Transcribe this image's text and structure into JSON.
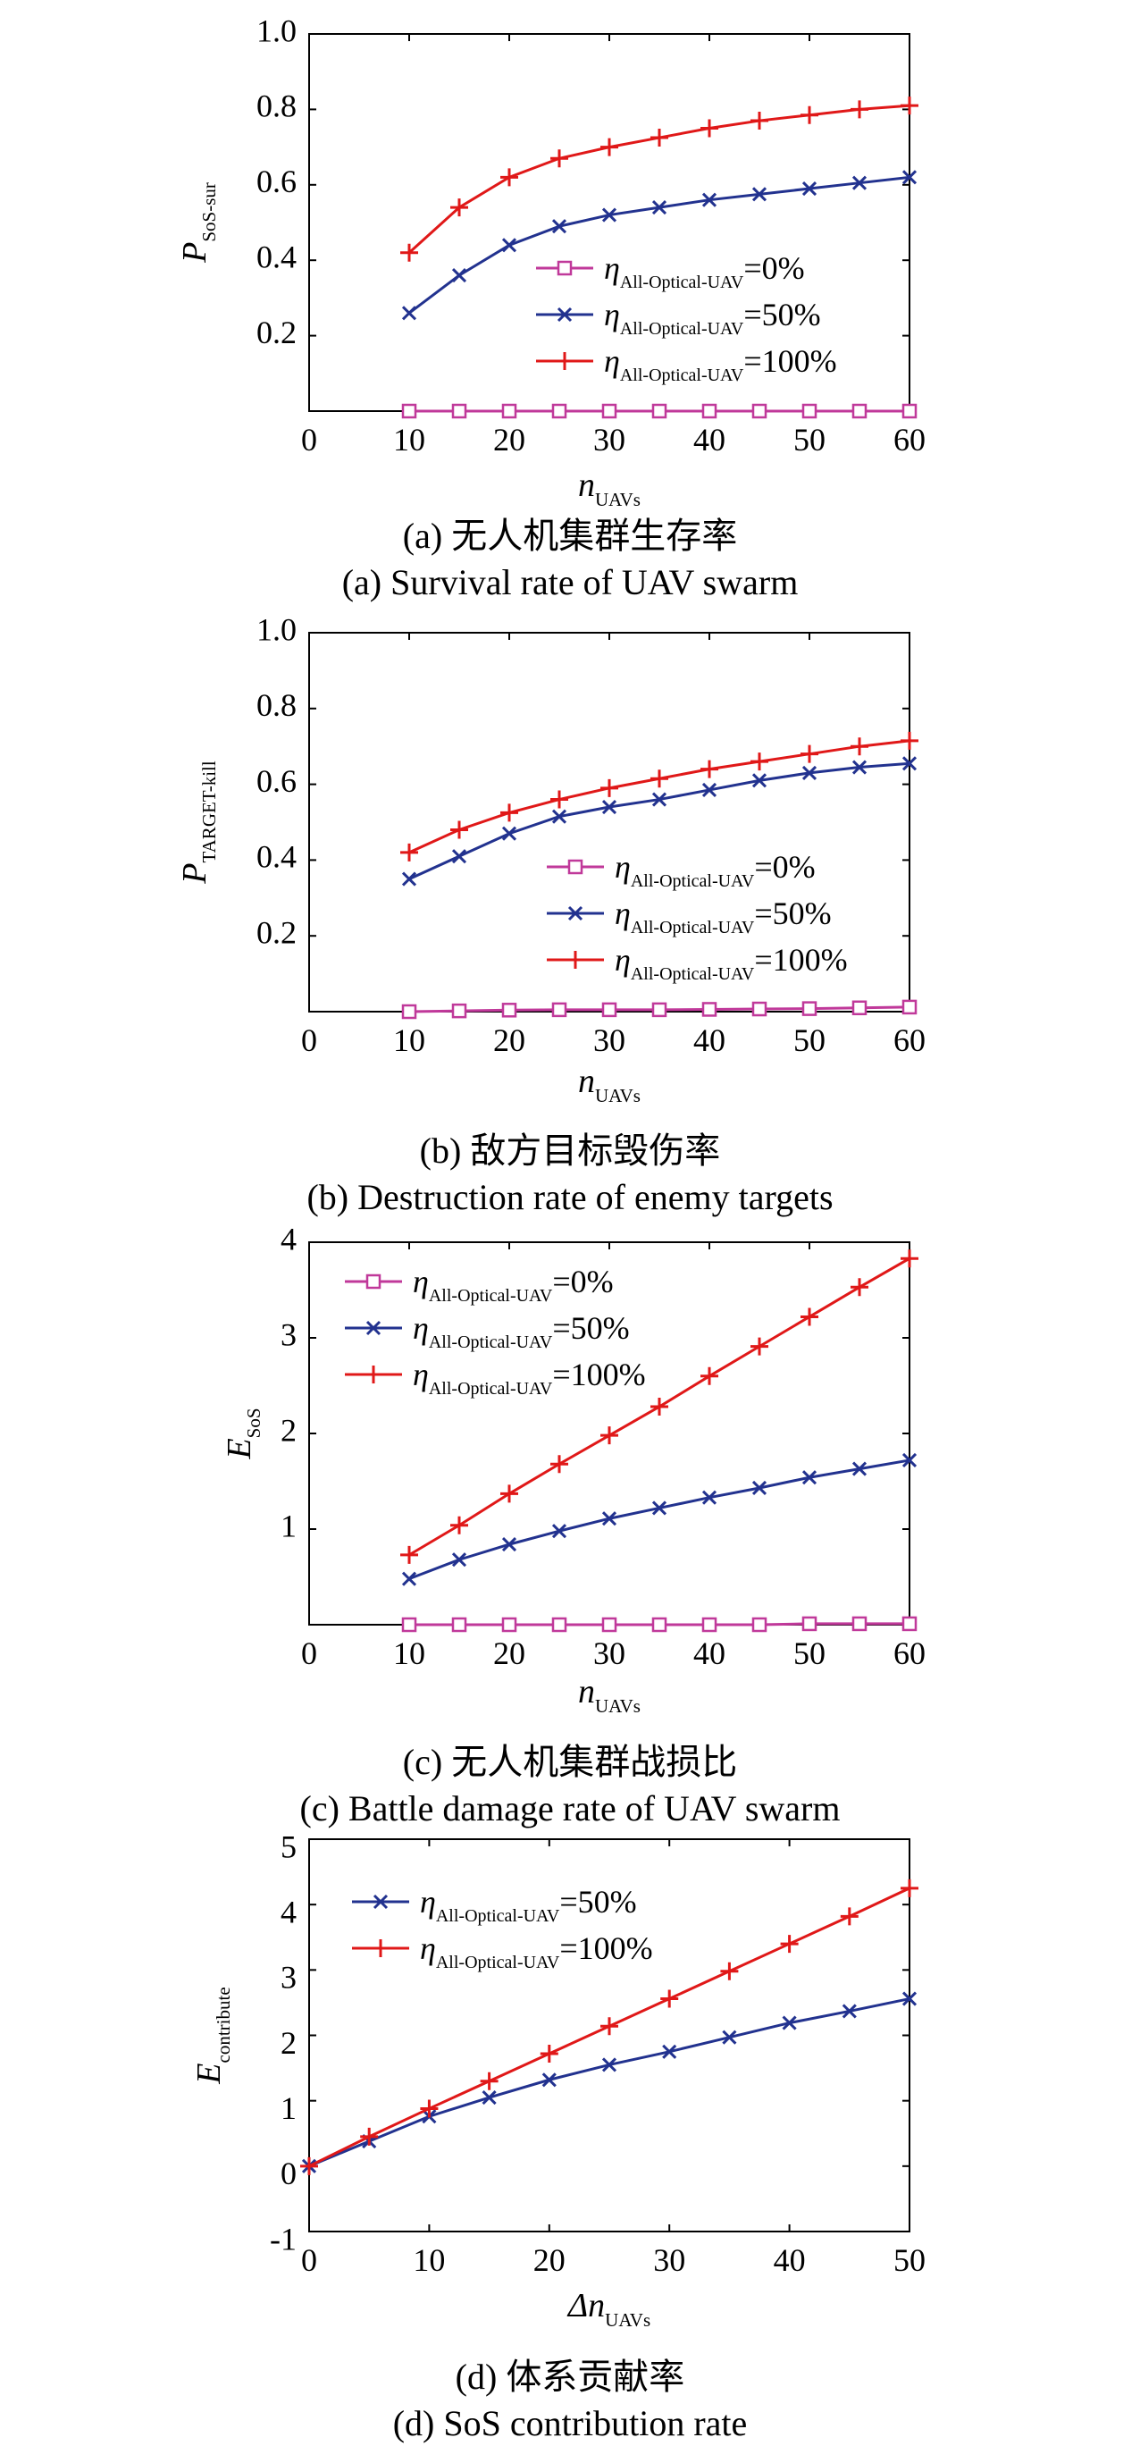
{
  "colors": {
    "eta0": "#c0399a",
    "eta50": "#22328f",
    "eta100": "#e01818"
  },
  "chart_data": [
    {
      "type": "line",
      "ylabel_main": "P",
      "ylabel_sub": "SoS-sur",
      "xlabel_main": "n",
      "xlabel_sub": "UAVs",
      "x": [
        10,
        15,
        20,
        25,
        30,
        35,
        40,
        45,
        50,
        55,
        60
      ],
      "xlim": [
        0,
        60
      ],
      "ylim": [
        0,
        1.0
      ],
      "xticks": [
        "0",
        "10",
        "20",
        "30",
        "40",
        "50",
        "60"
      ],
      "yticks": [
        "0.2",
        "0.4",
        "0.6",
        "0.8",
        "1.0"
      ],
      "legend_position": "center-right",
      "series": [
        {
          "name_main": "η",
          "name_sub": "All-Optical-UAV",
          "name_tail": "=0%",
          "marker": "square",
          "color_key": "eta0",
          "values": [
            0,
            0,
            0,
            0,
            0,
            0,
            0,
            0,
            0,
            0,
            0
          ]
        },
        {
          "name_main": "η",
          "name_sub": "All-Optical-UAV",
          "name_tail": "=50%",
          "marker": "x",
          "color_key": "eta50",
          "values": [
            0.26,
            0.36,
            0.44,
            0.49,
            0.52,
            0.54,
            0.56,
            0.575,
            0.59,
            0.605,
            0.62
          ]
        },
        {
          "name_main": "η",
          "name_sub": "All-Optical-UAV",
          "name_tail": "=100%",
          "marker": "plus",
          "color_key": "eta100",
          "values": [
            0.42,
            0.54,
            0.62,
            0.67,
            0.7,
            0.725,
            0.75,
            0.77,
            0.785,
            0.8,
            0.81
          ]
        }
      ],
      "caption_cn": "(a) 无人机集群生存率",
      "caption_en": "(a) Survival rate of UAV swarm"
    },
    {
      "type": "line",
      "ylabel_main": "P",
      "ylabel_sub": "TARGET-kill",
      "xlabel_main": "n",
      "xlabel_sub": "UAVs",
      "x": [
        10,
        15,
        20,
        25,
        30,
        35,
        40,
        45,
        50,
        55,
        60
      ],
      "xlim": [
        0,
        60
      ],
      "ylim": [
        0,
        1.0
      ],
      "xticks": [
        "0",
        "10",
        "20",
        "30",
        "40",
        "50",
        "60"
      ],
      "yticks": [
        "0.2",
        "0.4",
        "0.6",
        "0.8",
        "1.0"
      ],
      "legend_position": "lower-right",
      "series": [
        {
          "name_main": "η",
          "name_sub": "All-Optical-UAV",
          "name_tail": "=0%",
          "marker": "square",
          "color_key": "eta0",
          "values": [
            0.0,
            0.002,
            0.004,
            0.005,
            0.005,
            0.005,
            0.006,
            0.007,
            0.008,
            0.01,
            0.012
          ]
        },
        {
          "name_main": "η",
          "name_sub": "All-Optical-UAV",
          "name_tail": "=50%",
          "marker": "x",
          "color_key": "eta50",
          "values": [
            0.35,
            0.41,
            0.47,
            0.515,
            0.54,
            0.56,
            0.585,
            0.61,
            0.63,
            0.645,
            0.655
          ]
        },
        {
          "name_main": "η",
          "name_sub": "All-Optical-UAV",
          "name_tail": "=100%",
          "marker": "plus",
          "color_key": "eta100",
          "values": [
            0.42,
            0.48,
            0.525,
            0.56,
            0.59,
            0.615,
            0.64,
            0.66,
            0.68,
            0.7,
            0.715
          ]
        }
      ],
      "caption_cn": "(b) 敌方目标毁伤率",
      "caption_en": "(b) Destruction rate of enemy targets"
    },
    {
      "type": "line",
      "ylabel_main": "E",
      "ylabel_sub": "SoS",
      "xlabel_main": "n",
      "xlabel_sub": "UAVs",
      "x": [
        10,
        15,
        20,
        25,
        30,
        35,
        40,
        45,
        50,
        55,
        60
      ],
      "xlim": [
        0,
        60
      ],
      "ylim": [
        0,
        4
      ],
      "xticks": [
        "0",
        "10",
        "20",
        "30",
        "40",
        "50",
        "60"
      ],
      "yticks": [
        "1",
        "2",
        "3",
        "4"
      ],
      "legend_position": "top-left",
      "series": [
        {
          "name_main": "η",
          "name_sub": "All-Optical-UAV",
          "name_tail": "=0%",
          "marker": "square",
          "color_key": "eta0",
          "values": [
            0,
            0,
            0,
            0,
            0,
            0,
            0,
            0,
            0.01,
            0.01,
            0.01
          ]
        },
        {
          "name_main": "η",
          "name_sub": "All-Optical-UAV",
          "name_tail": "=50%",
          "marker": "x",
          "color_key": "eta50",
          "values": [
            0.48,
            0.68,
            0.84,
            0.98,
            1.11,
            1.22,
            1.33,
            1.43,
            1.54,
            1.63,
            1.72
          ]
        },
        {
          "name_main": "η",
          "name_sub": "All-Optical-UAV",
          "name_tail": "=100%",
          "marker": "plus",
          "color_key": "eta100",
          "values": [
            0.73,
            1.04,
            1.37,
            1.68,
            1.98,
            2.28,
            2.6,
            2.91,
            3.22,
            3.53,
            3.83
          ]
        }
      ],
      "caption_cn": "(c) 无人机集群战损比",
      "caption_en": "(c) Battle damage rate of UAV swarm"
    },
    {
      "type": "line",
      "ylabel_main": "E",
      "ylabel_sub": "contribute",
      "xlabel_main": "Δn",
      "xlabel_sub": "UAVs",
      "x": [
        0,
        5,
        10,
        15,
        20,
        25,
        30,
        35,
        40,
        45,
        50
      ],
      "xlim": [
        0,
        50
      ],
      "ylim": [
        -1,
        5
      ],
      "xticks": [
        "0",
        "10",
        "20",
        "30",
        "40",
        "50"
      ],
      "yticks": [
        "-1",
        "0",
        "1",
        "2",
        "3",
        "4",
        "5"
      ],
      "legend_position": "top-left",
      "series": [
        {
          "name_main": "η",
          "name_sub": "All-Optical-UAV",
          "name_tail": "=50%",
          "marker": "x",
          "color_key": "eta50",
          "values": [
            0,
            0.38,
            0.76,
            1.05,
            1.32,
            1.55,
            1.75,
            1.97,
            2.19,
            2.37,
            2.56
          ]
        },
        {
          "name_main": "η",
          "name_sub": "All-Optical-UAV",
          "name_tail": "=100%",
          "marker": "plus",
          "color_key": "eta100",
          "values": [
            0,
            0.45,
            0.88,
            1.3,
            1.72,
            2.14,
            2.56,
            2.98,
            3.4,
            3.82,
            4.25
          ]
        }
      ],
      "caption_cn": "(d) 体系贡献率",
      "caption_en": "(d) SoS contribution rate"
    }
  ]
}
